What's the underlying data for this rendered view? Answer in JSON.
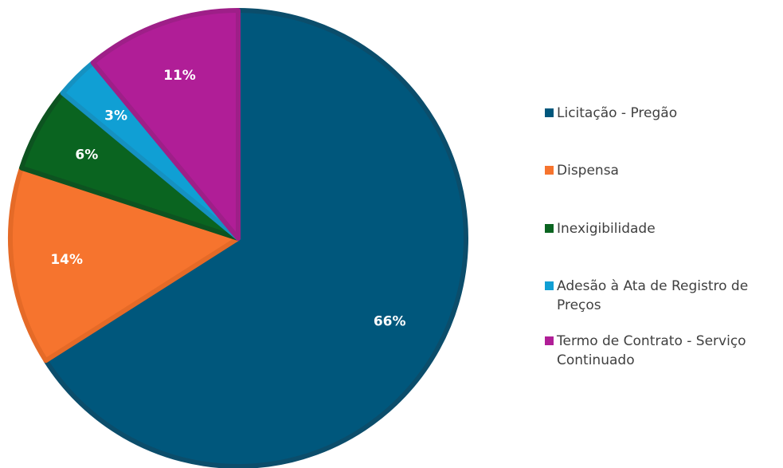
{
  "chart_data": {
    "type": "pie",
    "categories": [
      "Licitação - Pregão",
      "Dispensa",
      "Inexigibilidade",
      "Adesão à Ata de Registro de Preços",
      "Termo de Contrato - Serviço Continuado"
    ],
    "values": [
      66,
      14,
      6,
      3,
      11
    ],
    "data_labels": [
      "66%",
      "14%",
      "6%",
      "3%",
      "11%"
    ],
    "colors": [
      "#00577C",
      "#F6742E",
      "#0A6420",
      "#109FD4",
      "#B01E97"
    ],
    "border_colors": [
      "#0B4D6B",
      "#E56A27",
      "#0D5320",
      "#1591C1",
      "#9E1F88"
    ],
    "legend_position": "right"
  }
}
